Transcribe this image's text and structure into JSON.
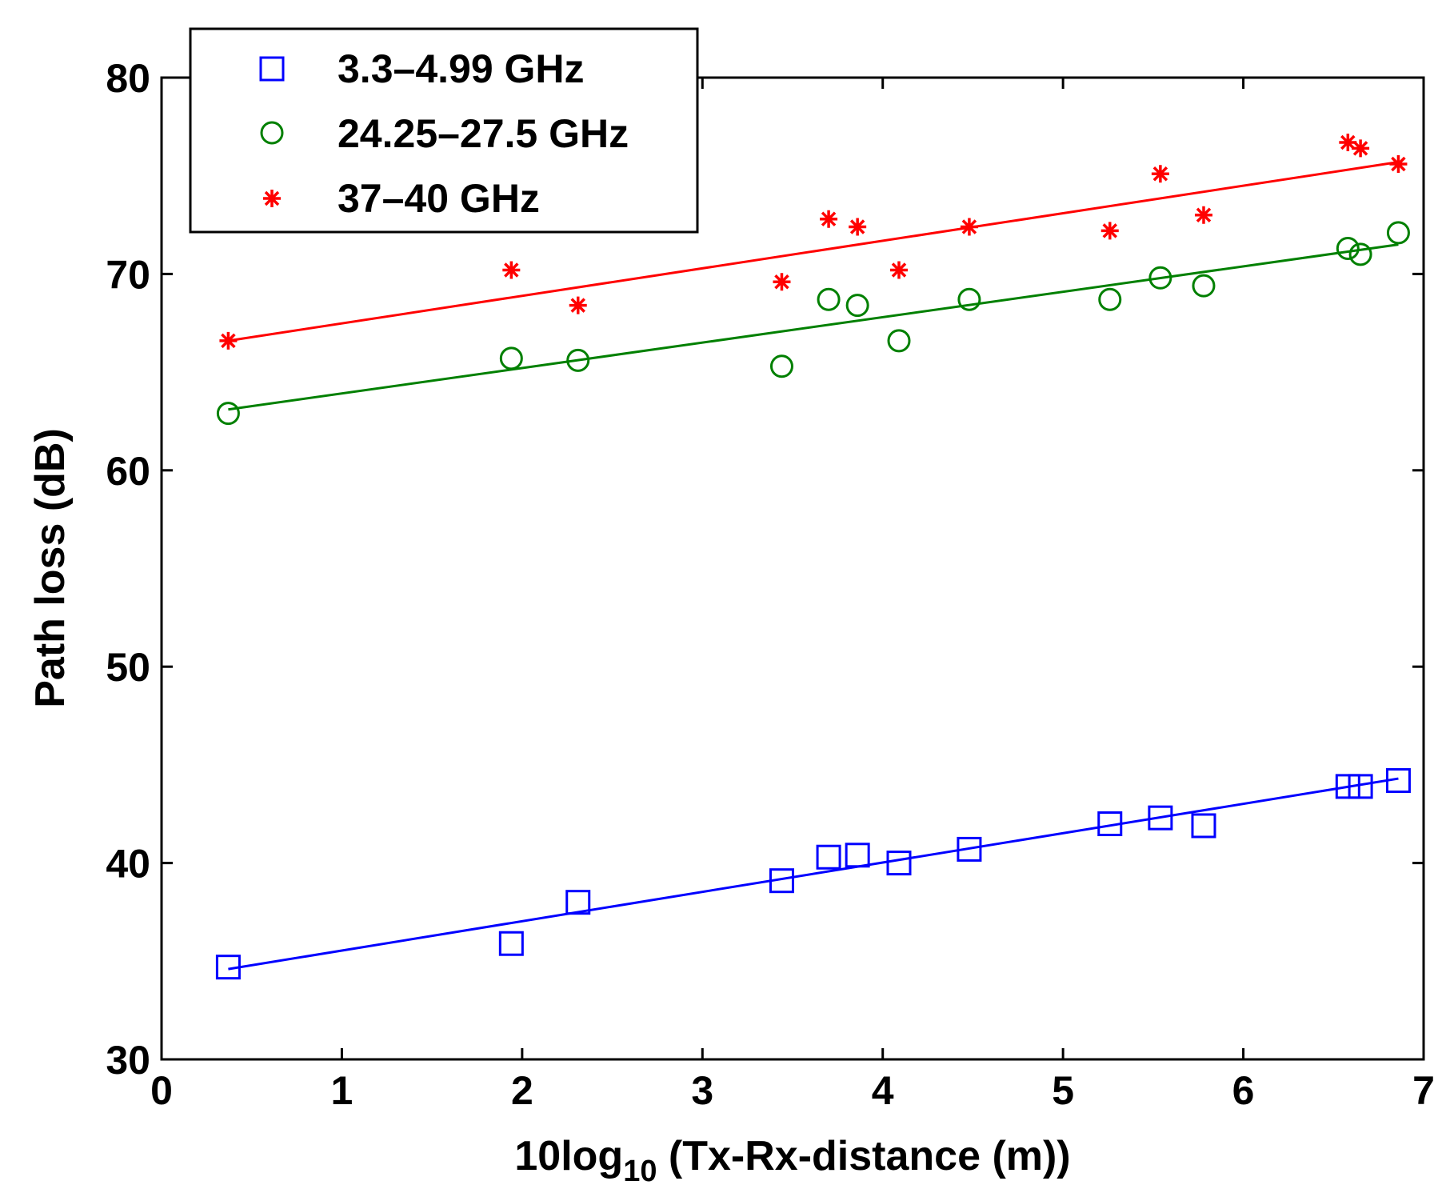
{
  "chart_data": {
    "type": "scatter",
    "title": "",
    "xlabel_parts": {
      "prefix": "10log",
      "subscript": "10",
      "suffix": " (Tx-Rx-distance (m))"
    },
    "ylabel": "Path loss (dB)",
    "xlim": [
      0,
      7
    ],
    "ylim": [
      30,
      80
    ],
    "xticks": [
      "0",
      "1",
      "2",
      "3",
      "4",
      "5",
      "6",
      "7"
    ],
    "yticks": [
      "30",
      "40",
      "50",
      "60",
      "70",
      "80"
    ],
    "grid": false,
    "legend_position": "top-left",
    "series": [
      {
        "name": "3.3–4.99 GHz",
        "marker": "square",
        "color": "#0000ff",
        "x": [
          0.37,
          1.94,
          2.31,
          3.44,
          3.7,
          3.86,
          4.09,
          4.48,
          5.26,
          5.54,
          5.78,
          6.58,
          6.65,
          6.86
        ],
        "y": [
          34.7,
          35.9,
          38.0,
          39.1,
          40.3,
          40.4,
          40.0,
          40.7,
          42.0,
          42.3,
          41.9,
          43.9,
          43.9,
          44.2
        ],
        "fit": {
          "x": [
            0.37,
            6.86
          ],
          "y": [
            34.6,
            44.3
          ]
        }
      },
      {
        "name": "24.25–27.5 GHz",
        "marker": "circle",
        "color": "#008000",
        "x": [
          0.37,
          1.94,
          2.31,
          3.44,
          3.7,
          3.86,
          4.09,
          4.48,
          5.26,
          5.54,
          5.78,
          6.58,
          6.65,
          6.86
        ],
        "y": [
          62.9,
          65.7,
          65.6,
          65.3,
          68.7,
          68.4,
          66.6,
          68.7,
          68.7,
          69.8,
          69.4,
          71.3,
          71.0,
          72.1
        ],
        "fit": {
          "x": [
            0.37,
            6.86
          ],
          "y": [
            63.1,
            71.5
          ]
        }
      },
      {
        "name": "37–40 GHz",
        "marker": "star",
        "color": "#ff0000",
        "x": [
          0.37,
          1.94,
          2.31,
          3.44,
          3.7,
          3.86,
          4.09,
          4.48,
          5.26,
          5.54,
          5.78,
          6.58,
          6.65,
          6.86
        ],
        "y": [
          66.6,
          70.2,
          68.4,
          69.6,
          72.8,
          72.4,
          70.2,
          72.4,
          72.2,
          75.1,
          73.0,
          76.7,
          76.4,
          75.6
        ],
        "fit": {
          "x": [
            0.37,
            6.86
          ],
          "y": [
            66.6,
            75.7
          ]
        }
      }
    ]
  }
}
